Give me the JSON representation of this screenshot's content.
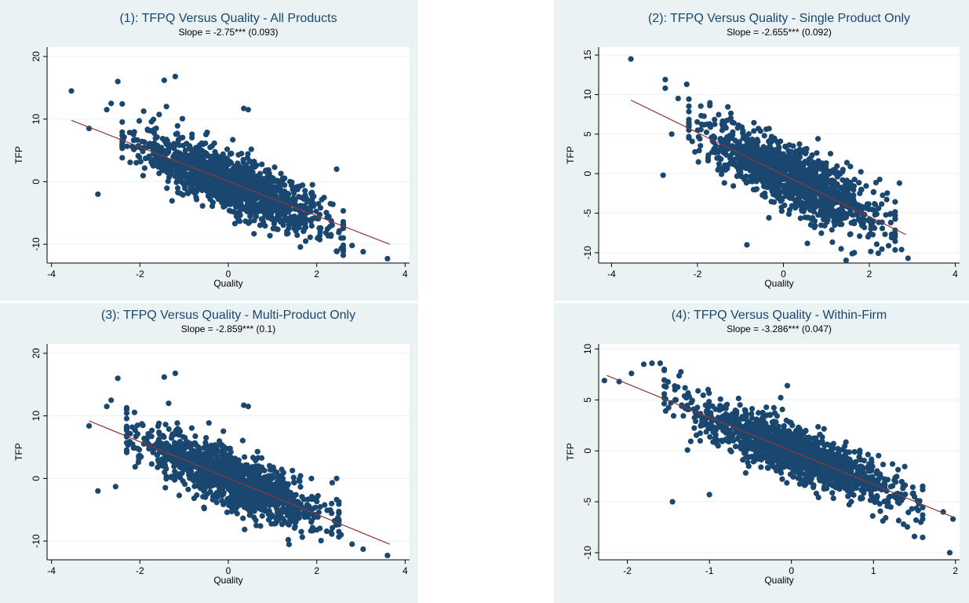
{
  "chart_data": [
    {
      "type": "scatter",
      "title": "(1): TFPQ Versus Quality - All Products",
      "subtitle": "Slope = -2.75*** (0.093)",
      "xlabel": "Quality",
      "ylabel": "TFP",
      "xlim": [
        -4.1,
        4.1
      ],
      "ylim": [
        -13,
        21.5
      ],
      "xticks": [
        -4,
        -2,
        0,
        2,
        4
      ],
      "yticks": [
        -10,
        0,
        10,
        20
      ],
      "fit_line": {
        "x": [
          -3.55,
          3.65
        ],
        "y": [
          9.8,
          -10.0
        ]
      },
      "outliers": [
        [
          -3.55,
          14.5
        ],
        [
          -3.15,
          8.5
        ],
        [
          -2.95,
          -2.0
        ],
        [
          -2.5,
          16.0
        ],
        [
          -2.75,
          11.5
        ],
        [
          -2.65,
          12.5
        ],
        [
          -1.45,
          16.2
        ],
        [
          -1.2,
          16.8
        ],
        [
          -1.4,
          12.0
        ],
        [
          0.35,
          11.7
        ],
        [
          0.45,
          11.5
        ],
        [
          2.55,
          -9.0
        ],
        [
          2.8,
          -10.2
        ],
        [
          3.05,
          -11.2
        ],
        [
          3.6,
          -12.3
        ],
        [
          2.45,
          2.0
        ],
        [
          1.75,
          -9.5
        ]
      ],
      "cloud": {
        "x_range": [
          -2.4,
          2.6
        ],
        "intercept": 0.0,
        "slope": -2.75,
        "spread": 2.2,
        "n": 1400
      }
    },
    {
      "type": "scatter",
      "title": "(2): TFPQ Versus Quality - Single Product Only",
      "subtitle": "Slope = -2.655*** (0.092)",
      "xlabel": "Quality",
      "ylabel": "TFP",
      "xlim": [
        -4.3,
        4.1
      ],
      "ylim": [
        -11.3,
        16.0
      ],
      "xticks": [
        -4,
        -2,
        0,
        2,
        4
      ],
      "yticks": [
        -10,
        -5,
        0,
        5,
        10,
        15
      ],
      "fit_line": {
        "x": [
          -3.55,
          2.85
        ],
        "y": [
          9.3,
          -7.7
        ]
      },
      "outliers": [
        [
          -3.55,
          14.5
        ],
        [
          -2.75,
          11.9
        ],
        [
          -2.75,
          10.8
        ],
        [
          -2.25,
          11.3
        ],
        [
          -2.45,
          9.5
        ],
        [
          -2.8,
          -0.2
        ],
        [
          -2.6,
          5.0
        ],
        [
          2.75,
          -9.6
        ],
        [
          2.9,
          -10.7
        ],
        [
          1.65,
          -10.0
        ],
        [
          -0.85,
          -9.0
        ],
        [
          2.7,
          -1.2
        ]
      ],
      "cloud": {
        "x_range": [
          -2.2,
          2.6
        ],
        "intercept": 0.0,
        "slope": -2.655,
        "spread": 2.0,
        "n": 1300
      }
    },
    {
      "type": "scatter",
      "title": "(3): TFPQ Versus Quality - Multi-Product Only",
      "subtitle": "Slope = -2.859*** (0.1)",
      "xlabel": "Quality",
      "ylabel": "TFP",
      "xlim": [
        -4.1,
        4.1
      ],
      "ylim": [
        -13,
        21.5
      ],
      "xticks": [
        -4,
        -2,
        0,
        2,
        4
      ],
      "yticks": [
        -10,
        0,
        10,
        20
      ],
      "fit_line": {
        "x": [
          -3.15,
          3.65
        ],
        "y": [
          9.2,
          -10.5
        ]
      },
      "outliers": [
        [
          -3.15,
          8.4
        ],
        [
          -2.95,
          -2.0
        ],
        [
          -2.75,
          11.5
        ],
        [
          -2.65,
          12.5
        ],
        [
          -2.5,
          16.0
        ],
        [
          -1.45,
          16.2
        ],
        [
          -1.2,
          16.8
        ],
        [
          -1.35,
          12.0
        ],
        [
          0.35,
          11.7
        ],
        [
          0.45,
          11.5
        ],
        [
          2.55,
          -9.0
        ],
        [
          2.8,
          -10.5
        ],
        [
          3.05,
          -11.3
        ],
        [
          3.6,
          -12.3
        ],
        [
          2.45,
          0.0
        ],
        [
          -2.55,
          -1.3
        ]
      ],
      "cloud": {
        "x_range": [
          -2.3,
          2.5
        ],
        "intercept": 0.0,
        "slope": -2.859,
        "spread": 2.2,
        "n": 1300
      }
    },
    {
      "type": "scatter",
      "title": "(4): TFPQ Versus Quality - Within-Firm",
      "subtitle": "Slope = -3.286*** (0.047)",
      "xlabel": "Quality",
      "ylabel": "TFP",
      "xlim": [
        -2.35,
        2.05
      ],
      "ylim": [
        -10.7,
        10.5
      ],
      "xticks": [
        -2,
        -1,
        0,
        1,
        2
      ],
      "yticks": [
        -10,
        -5,
        0,
        5,
        10
      ],
      "fit_line": {
        "x": [
          -2.25,
          1.97
        ],
        "y": [
          7.4,
          -6.5
        ]
      },
      "outliers": [
        [
          -2.28,
          6.9
        ],
        [
          -2.1,
          6.8
        ],
        [
          -1.95,
          7.6
        ],
        [
          -1.8,
          8.5
        ],
        [
          -1.7,
          8.6
        ],
        [
          -1.6,
          8.6
        ],
        [
          -1.55,
          8.0
        ],
        [
          -1.45,
          -5.0
        ],
        [
          -1.0,
          -4.3
        ],
        [
          -0.05,
          6.4
        ],
        [
          1.5,
          -8.4
        ],
        [
          1.6,
          -8.5
        ],
        [
          1.93,
          -10.0
        ],
        [
          1.85,
          -6.0
        ],
        [
          1.97,
          -6.7
        ]
      ],
      "cloud": {
        "x_range": [
          -1.55,
          1.6
        ],
        "intercept": 0.0,
        "slope": -3.286,
        "spread": 1.3,
        "n": 1400
      }
    }
  ],
  "colors": {
    "background": "#eaf2f3",
    "marker": "#1a476f",
    "fit": "#90353b",
    "grid": "#ffffff"
  }
}
